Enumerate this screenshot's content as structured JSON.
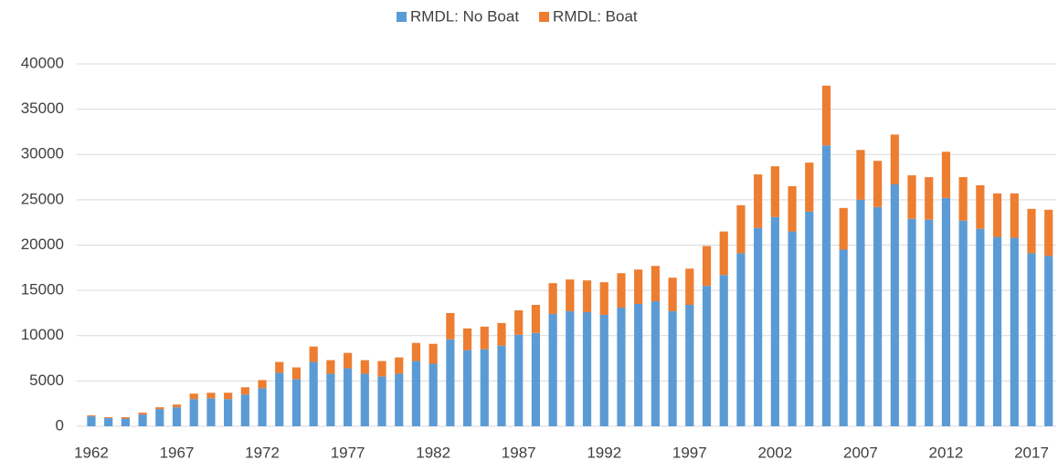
{
  "chart_data": {
    "type": "stacked-bar",
    "categories": [
      "1962",
      null,
      null,
      null,
      null,
      "1967",
      null,
      null,
      null,
      null,
      "1972",
      null,
      null,
      null,
      null,
      "1977",
      null,
      null,
      null,
      null,
      "1982",
      null,
      null,
      null,
      null,
      "1987",
      null,
      null,
      null,
      null,
      "1992",
      null,
      null,
      null,
      null,
      "1997",
      null,
      null,
      null,
      null,
      "2002",
      null,
      null,
      null,
      null,
      "2007",
      null,
      null,
      null,
      null,
      "2012",
      null,
      null,
      null,
      null,
      "2017",
      null
    ],
    "series": [
      {
        "name": "RMDL: No Boat",
        "color": "#5b9bd5",
        "values": [
          1100,
          900,
          850,
          1300,
          1900,
          2100,
          3000,
          3100,
          3000,
          3500,
          4200,
          5900,
          5200,
          7100,
          5800,
          6400,
          5800,
          5500,
          5800,
          7200,
          6900,
          9600,
          8400,
          8500,
          8900,
          10100,
          10300,
          12400,
          12700,
          12600,
          12300,
          13100,
          13500,
          13800,
          12700,
          13400,
          15500,
          16700,
          19100,
          21900,
          23100,
          21500,
          23700,
          31000,
          19500,
          25000,
          24200,
          26700,
          22900,
          22800,
          25200,
          22700,
          21800,
          20900,
          20800,
          19100,
          18800
        ]
      },
      {
        "name": "RMDL: Boat",
        "color": "#ed7d31",
        "values": [
          100,
          100,
          150,
          200,
          200,
          300,
          600,
          600,
          700,
          800,
          900,
          1200,
          1300,
          1700,
          1500,
          1700,
          1500,
          1700,
          1800,
          2000,
          2200,
          2900,
          2400,
          2500,
          2500,
          2700,
          3100,
          3400,
          3500,
          3500,
          3600,
          3800,
          3800,
          3900,
          3700,
          4000,
          4400,
          4800,
          5300,
          5900,
          5600,
          5000,
          5400,
          6600,
          4600,
          5500,
          5100,
          5500,
          4800,
          4700,
          5100,
          4800,
          4800,
          4800,
          4900,
          4900,
          5100
        ]
      }
    ],
    "ylim": [
      0,
      40000
    ],
    "yticks": [
      0,
      5000,
      10000,
      15000,
      20000,
      25000,
      30000,
      35000,
      40000
    ],
    "grid": true,
    "legend": "top"
  }
}
